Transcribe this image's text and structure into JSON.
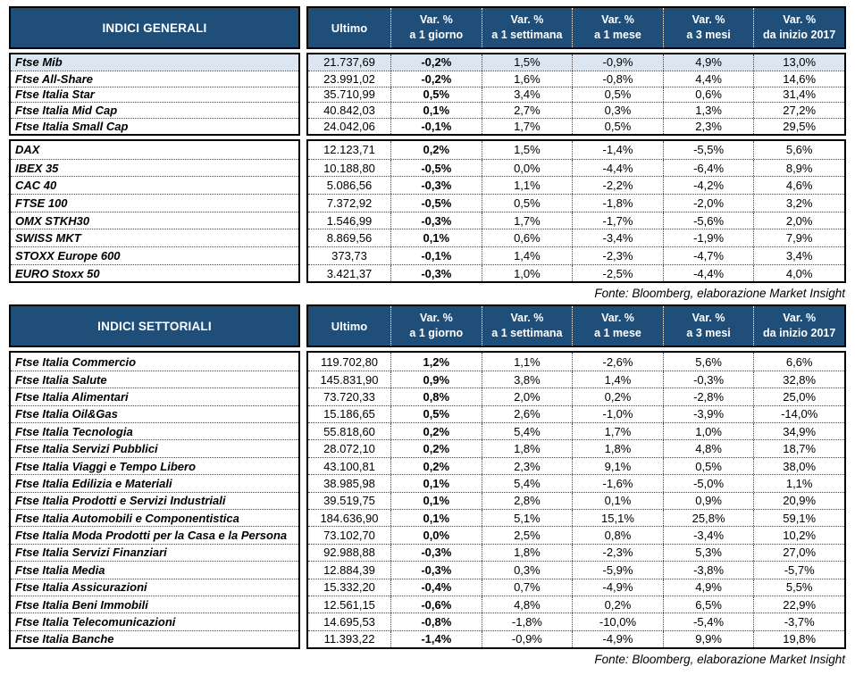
{
  "colors": {
    "header_bg": "#1F4E79",
    "header_text": "#FFFFFF",
    "highlight_row_bg": "#DCE6F1",
    "border": "#000000"
  },
  "tables": [
    {
      "title": "INDICI GENERALI",
      "ultimo_label": "Ultimo",
      "var_cols": [
        {
          "line1": "Var. %",
          "line2": "a 1 giorno"
        },
        {
          "line1": "Var. %",
          "line2": "a 1 settimana"
        },
        {
          "line1": "Var. %",
          "line2": "a 1 mese"
        },
        {
          "line1": "Var. %",
          "line2": "a 3 mesi"
        },
        {
          "line1": "Var. %",
          "line2": "da inizio 2017"
        }
      ],
      "source_note": "Fonte: Bloomberg, elaborazione Market Insight",
      "sections": [
        {
          "rows": [
            {
              "name": "Ftse Mib",
              "highlight": true,
              "ultimo": "21.737,69",
              "vals": [
                "-0,2%",
                "1,5%",
                "-0,9%",
                "4,9%",
                "13,0%"
              ]
            },
            {
              "name": "Ftse All-Share",
              "ultimo": "23.991,02",
              "vals": [
                "-0,2%",
                "1,6%",
                "-0,8%",
                "4,4%",
                "14,6%"
              ]
            },
            {
              "name": "Ftse Italia Star",
              "ultimo": "35.710,99",
              "vals": [
                "0,5%",
                "3,4%",
                "0,5%",
                "0,6%",
                "31,4%"
              ]
            },
            {
              "name": "Ftse Italia Mid Cap",
              "ultimo": "40.842,03",
              "vals": [
                "0,1%",
                "2,7%",
                "0,3%",
                "1,3%",
                "27,2%"
              ]
            },
            {
              "name": "Ftse Italia Small Cap",
              "ultimo": "24.042,06",
              "vals": [
                "-0,1%",
                "1,7%",
                "0,5%",
                "2,3%",
                "29,5%"
              ]
            }
          ]
        },
        {
          "rows": [
            {
              "name": "DAX",
              "ultimo": "12.123,71",
              "vals": [
                "0,2%",
                "1,5%",
                "-1,4%",
                "-5,5%",
                "5,6%"
              ]
            },
            {
              "name": "IBEX 35",
              "ultimo": "10.188,80",
              "vals": [
                "-0,5%",
                "0,0%",
                "-4,4%",
                "-6,4%",
                "8,9%"
              ]
            },
            {
              "name": "CAC 40",
              "ultimo": "5.086,56",
              "vals": [
                "-0,3%",
                "1,1%",
                "-2,2%",
                "-4,2%",
                "4,6%"
              ]
            },
            {
              "name": "FTSE 100",
              "ultimo": "7.372,92",
              "vals": [
                "-0,5%",
                "0,5%",
                "-1,8%",
                "-2,0%",
                "3,2%"
              ]
            },
            {
              "name": "OMX STKH30",
              "ultimo": "1.546,99",
              "vals": [
                "-0,3%",
                "1,7%",
                "-1,7%",
                "-5,6%",
                "2,0%"
              ]
            },
            {
              "name": "SWISS MKT",
              "ultimo": "8.869,56",
              "vals": [
                "0,1%",
                "0,6%",
                "-3,4%",
                "-1,9%",
                "7,9%"
              ]
            },
            {
              "name": "STOXX Europe 600",
              "ultimo": "373,73",
              "vals": [
                "-0,1%",
                "1,4%",
                "-2,3%",
                "-4,7%",
                "3,4%"
              ]
            },
            {
              "name": "EURO Stoxx 50",
              "ultimo": "3.421,37",
              "vals": [
                "-0,3%",
                "1,0%",
                "-2,5%",
                "-4,4%",
                "4,0%"
              ]
            }
          ]
        }
      ]
    },
    {
      "title": "INDICI SETTORIALI",
      "ultimo_label": "Ultimo",
      "var_cols": [
        {
          "line1": "Var. %",
          "line2": "a 1 giorno"
        },
        {
          "line1": "Var. %",
          "line2": "a 1 settimana"
        },
        {
          "line1": "Var. %",
          "line2": "a 1 mese"
        },
        {
          "line1": "Var. %",
          "line2": "a 3 mesi"
        },
        {
          "line1": "Var. %",
          "line2": "da inizio 2017"
        }
      ],
      "source_note": "Fonte: Bloomberg, elaborazione Market Insight",
      "sections": [
        {
          "rows": [
            {
              "name": "Ftse Italia Commercio",
              "ultimo": "119.702,80",
              "vals": [
                "1,2%",
                "1,1%",
                "-2,6%",
                "5,6%",
                "6,6%"
              ]
            },
            {
              "name": "Ftse Italia Salute",
              "ultimo": "145.831,90",
              "vals": [
                "0,9%",
                "3,8%",
                "1,4%",
                "-0,3%",
                "32,8%"
              ]
            },
            {
              "name": "Ftse Italia Alimentari",
              "ultimo": "73.720,33",
              "vals": [
                "0,8%",
                "2,0%",
                "0,2%",
                "-2,8%",
                "25,0%"
              ]
            },
            {
              "name": "Ftse Italia Oil&Gas",
              "ultimo": "15.186,65",
              "vals": [
                "0,5%",
                "2,6%",
                "-1,0%",
                "-3,9%",
                "-14,0%"
              ]
            },
            {
              "name": "Ftse Italia Tecnologia",
              "ultimo": "55.818,60",
              "vals": [
                "0,2%",
                "5,4%",
                "1,7%",
                "1,0%",
                "34,9%"
              ]
            },
            {
              "name": "Ftse Italia Servizi Pubblici",
              "ultimo": "28.072,10",
              "vals": [
                "0,2%",
                "1,8%",
                "1,8%",
                "4,8%",
                "18,7%"
              ]
            },
            {
              "name": "Ftse Italia Viaggi e Tempo Libero",
              "ultimo": "43.100,81",
              "vals": [
                "0,2%",
                "2,3%",
                "9,1%",
                "0,5%",
                "38,0%"
              ]
            },
            {
              "name": "Ftse Italia Edilizia e Materiali",
              "ultimo": "38.985,98",
              "vals": [
                "0,1%",
                "5,4%",
                "-1,6%",
                "-5,0%",
                "1,1%"
              ]
            },
            {
              "name": "Ftse Italia Prodotti e Servizi Industriali",
              "ultimo": "39.519,75",
              "vals": [
                "0,1%",
                "2,8%",
                "0,1%",
                "0,9%",
                "20,9%"
              ]
            },
            {
              "name": "Ftse Italia Automobili e Componentistica",
              "ultimo": "184.636,90",
              "vals": [
                "0,1%",
                "5,1%",
                "15,1%",
                "25,8%",
                "59,1%"
              ]
            },
            {
              "name": "Ftse Italia Moda Prodotti per la Casa e la Persona",
              "ultimo": "73.102,70",
              "vals": [
                "0,0%",
                "2,5%",
                "0,8%",
                "-3,4%",
                "10,2%"
              ]
            },
            {
              "name": "Ftse Italia Servizi Finanziari",
              "ultimo": "92.988,88",
              "vals": [
                "-0,3%",
                "1,8%",
                "-2,3%",
                "5,3%",
                "27,0%"
              ]
            },
            {
              "name": "Ftse Italia Media",
              "ultimo": "12.884,39",
              "vals": [
                "-0,3%",
                "0,3%",
                "-5,9%",
                "-3,8%",
                "-5,7%"
              ]
            },
            {
              "name": "Ftse Italia Assicurazioni",
              "ultimo": "15.332,20",
              "vals": [
                "-0,4%",
                "0,7%",
                "-4,9%",
                "4,9%",
                "5,5%"
              ]
            },
            {
              "name": "Ftse Italia Beni Immobili",
              "ultimo": "12.561,15",
              "vals": [
                "-0,6%",
                "4,8%",
                "0,2%",
                "6,5%",
                "22,9%"
              ]
            },
            {
              "name": "Ftse Italia Telecomunicazioni",
              "ultimo": "14.695,53",
              "vals": [
                "-0,8%",
                "-1,8%",
                "-10,0%",
                "-5,4%",
                "-3,7%"
              ]
            },
            {
              "name": "Ftse Italia Banche",
              "ultimo": "11.393,22",
              "vals": [
                "-1,4%",
                "-0,9%",
                "-4,9%",
                "9,9%",
                "19,8%"
              ]
            }
          ]
        }
      ]
    }
  ]
}
